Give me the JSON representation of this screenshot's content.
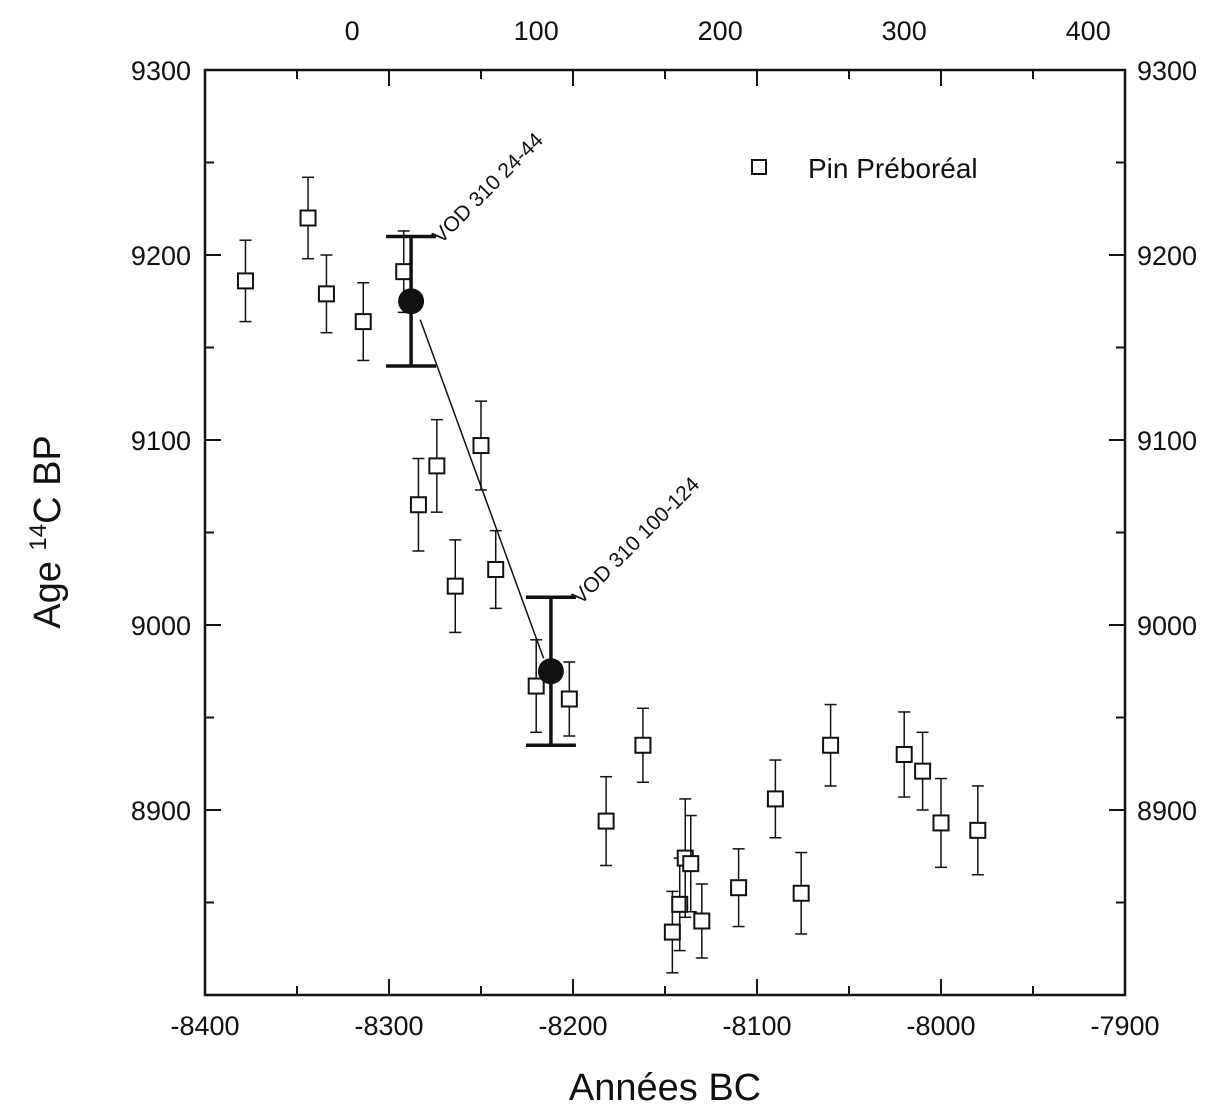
{
  "chart_data": {
    "type": "scatter",
    "xlabel": "Années BC",
    "ylabel_prefix": "Age ",
    "ylabel_sup": "14",
    "ylabel_suffix": "C BP",
    "xlim": [
      -8400,
      -7900
    ],
    "ylim": [
      8800,
      9300
    ],
    "x_ticks": [
      -8400,
      -8300,
      -8200,
      -8100,
      -8000,
      -7900
    ],
    "x_tick_labels": [
      "-8400",
      "-8300",
      "-8200",
      "-8100",
      "-8000",
      "-7900"
    ],
    "y_ticks": [
      8900,
      9000,
      9100,
      9200,
      9300
    ],
    "y_tick_labels": [
      "8900",
      "9000",
      "9100",
      "9200",
      "9300"
    ],
    "top_axis_ticks": [
      0,
      100,
      200,
      300,
      400
    ],
    "top_axis_tick_labels": [
      "0",
      "100",
      "200",
      "300",
      "400"
    ],
    "top_axis_offset": -8320,
    "legend": {
      "label": "Pin Préboréal",
      "placement": "top-right"
    },
    "series": [
      {
        "name": "Pin Préboréal",
        "marker": "open-square",
        "points": [
          {
            "x": -8378,
            "y": 9186,
            "err": 22
          },
          {
            "x": -8344,
            "y": 9220,
            "err": 22
          },
          {
            "x": -8334,
            "y": 9179,
            "err": 21
          },
          {
            "x": -8314,
            "y": 9164,
            "err": 21
          },
          {
            "x": -8292,
            "y": 9191,
            "err": 22
          },
          {
            "x": -8284,
            "y": 9065,
            "err": 25
          },
          {
            "x": -8274,
            "y": 9086,
            "err": 25
          },
          {
            "x": -8264,
            "y": 9021,
            "err": 25
          },
          {
            "x": -8250,
            "y": 9097,
            "err": 24
          },
          {
            "x": -8242,
            "y": 9030,
            "err": 21
          },
          {
            "x": -8220,
            "y": 8967,
            "err": 25
          },
          {
            "x": -8202,
            "y": 8960,
            "err": 20
          },
          {
            "x": -8182,
            "y": 8894,
            "err": 24
          },
          {
            "x": -8162,
            "y": 8935,
            "err": 20
          },
          {
            "x": -8146,
            "y": 8834,
            "err": 22
          },
          {
            "x": -8142,
            "y": 8849,
            "err": 25
          },
          {
            "x": -8139,
            "y": 8874,
            "err": 32
          },
          {
            "x": -8136,
            "y": 8871,
            "err": 26
          },
          {
            "x": -8130,
            "y": 8840,
            "err": 20
          },
          {
            "x": -8110,
            "y": 8858,
            "err": 21
          },
          {
            "x": -8090,
            "y": 8906,
            "err": 21
          },
          {
            "x": -8076,
            "y": 8855,
            "err": 22
          },
          {
            "x": -8060,
            "y": 8935,
            "err": 22
          },
          {
            "x": -8020,
            "y": 8930,
            "err": 23
          },
          {
            "x": -8010,
            "y": 8921,
            "err": 21
          },
          {
            "x": -8000,
            "y": 8893,
            "err": 24
          },
          {
            "x": -7980,
            "y": 8889,
            "err": 24
          }
        ]
      },
      {
        "name": "VOD 310",
        "marker": "filled-circle",
        "points": [
          {
            "x": -8288,
            "y": 9175,
            "err": 35,
            "label": "VOD 310 24-44"
          },
          {
            "x": -8212,
            "y": 8975,
            "err": 40,
            "label": "VOD 310 100-124"
          }
        ]
      }
    ],
    "connector": [
      [
        -8283,
        9165
      ],
      [
        -8216,
        8982
      ]
    ]
  }
}
